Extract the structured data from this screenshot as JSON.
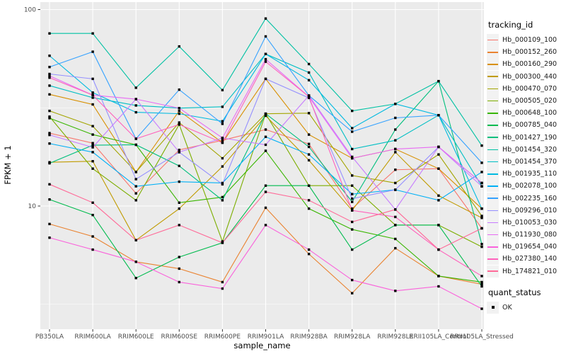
{
  "figure": {
    "background": "#ffffff",
    "panel_background": "#EBEBEB",
    "gridline_color": "#ffffff",
    "axis_text_color": "#4D4D4D",
    "x_axis": {
      "title": "sample_name"
    },
    "y_axis": {
      "title": "FPKM + 1",
      "tick_labels": [
        "100",
        "10"
      ],
      "tick_values": [
        100,
        10
      ],
      "minor_break_values": [
        31.62,
        3.162
      ]
    },
    "legend": {
      "tracking_title": "tracking_id",
      "quant_title": "quant_status",
      "quant_items": [
        {
          "label": "OK",
          "marker": "filled-black-square"
        }
      ]
    }
  },
  "chart_data": {
    "type": "line",
    "title": "",
    "xlabel": "sample_name",
    "ylabel": "FPKM + 1",
    "y_scale": "log10",
    "ylim": [
      2.45,
      110
    ],
    "grid": true,
    "legend_position": "right",
    "point_marker": "filled-black-square",
    "categories": [
      "PB350LA",
      "RRIM600LA",
      "RRIM600LE",
      "RRIM600SE",
      "RRIM600PE",
      "RRIM901LA",
      "RRIM928BA",
      "RRIM928LA",
      "RRIM928LE",
      "RRII105LA_Control",
      "RRII105LA_Stressed"
    ],
    "series": [
      {
        "name": "Hb_000109_100",
        "color": "#F8766D",
        "values": [
          23.5,
          20.9,
          11.6,
          19.3,
          21.6,
          24.5,
          20.7,
          9.7,
          15.3,
          15.5,
          7.7
        ]
      },
      {
        "name": "Hb_000152_260",
        "color": "#EA8331",
        "values": [
          8.1,
          7.0,
          5.2,
          4.8,
          4.1,
          9.8,
          5.7,
          3.6,
          6.1,
          4.4,
          4.0
        ]
      },
      {
        "name": "Hb_000160_290",
        "color": "#D89000",
        "values": [
          37.0,
          32.9,
          14.9,
          30.5,
          21.0,
          44.4,
          23.1,
          17.5,
          19.5,
          15.5,
          9.7
        ]
      },
      {
        "name": "Hb_000300_440",
        "color": "#C09B00",
        "values": [
          16.7,
          16.9,
          6.7,
          9.7,
          15.9,
          28.8,
          17.1,
          9.5,
          18.8,
          11.3,
          8.7
        ]
      },
      {
        "name": "Hb_000470_070",
        "color": "#A3A500",
        "values": [
          30.5,
          25.5,
          14.9,
          26.6,
          17.5,
          29.5,
          29.7,
          14.3,
          13.1,
          18.3,
          8.9
        ]
      },
      {
        "name": "Hb_000505_020",
        "color": "#7CAE00",
        "values": [
          28.5,
          15.5,
          10.7,
          26.0,
          6.6,
          29.5,
          12.7,
          12.7,
          8.0,
          8.0,
          6.2
        ]
      },
      {
        "name": "Hb_000648_100",
        "color": "#39B600",
        "values": [
          28.0,
          23.1,
          20.5,
          10.4,
          11.1,
          19.1,
          9.7,
          7.6,
          6.8,
          4.4,
          4.1
        ]
      },
      {
        "name": "Hb_000785_040",
        "color": "#00BB4E",
        "values": [
          10.8,
          9.0,
          4.3,
          5.5,
          6.5,
          12.7,
          12.7,
          6.0,
          8.0,
          8.0,
          3.9
        ]
      },
      {
        "name": "Hb_001427_190",
        "color": "#00BF7D",
        "values": [
          16.5,
          20.4,
          20.5,
          16.0,
          10.7,
          29.5,
          20.0,
          10.5,
          24.5,
          43.2,
          6.4
        ]
      },
      {
        "name": "Hb_001454_320",
        "color": "#00C1A3",
        "values": [
          75.6,
          75.6,
          40.0,
          64.9,
          38.9,
          90.0,
          52.8,
          30.5,
          33.1,
          43.2,
          20.3
        ]
      },
      {
        "name": "Hb_001454_370",
        "color": "#00BFC4",
        "values": [
          41.0,
          35.6,
          32.5,
          31.5,
          32.0,
          59.4,
          47.8,
          19.5,
          21.6,
          29.0,
          12.6
        ]
      },
      {
        "name": "Hb_001935_110",
        "color": "#00BAE0",
        "values": [
          58.2,
          37.8,
          30.0,
          29.5,
          27.0,
          59.4,
          43.7,
          24.9,
          33.1,
          29.0,
          9.7
        ]
      },
      {
        "name": "Hb_002078_100",
        "color": "#00B0F6",
        "values": [
          20.8,
          18.8,
          12.6,
          13.3,
          13.1,
          22.5,
          18.3,
          11.5,
          12.1,
          10.7,
          14.9
        ]
      },
      {
        "name": "Hb_002235_160",
        "color": "#35A2FF",
        "values": [
          51.0,
          61.0,
          22.0,
          39.1,
          26.2,
          73.0,
          36.5,
          23.9,
          28.1,
          29.0,
          16.6
        ]
      },
      {
        "name": "Hb_009296_010",
        "color": "#9590FF",
        "values": [
          47.0,
          44.4,
          13.7,
          18.8,
          12.9,
          44.4,
          35.5,
          10.9,
          12.1,
          20.0,
          13.1
        ]
      },
      {
        "name": "Hb_010053_030",
        "color": "#C77CFF",
        "values": [
          23.0,
          19.9,
          35.0,
          18.8,
          22.2,
          20.5,
          36.5,
          17.8,
          9.6,
          20.0,
          12.6
        ]
      },
      {
        "name": "Hb_011930_080",
        "color": "#E76BF3",
        "values": [
          46.0,
          36.7,
          35.0,
          31.5,
          22.2,
          55.9,
          36.0,
          17.5,
          19.5,
          20.0,
          13.1
        ]
      },
      {
        "name": "Hb_019654_040",
        "color": "#FA62DB",
        "values": [
          6.9,
          6.0,
          5.2,
          4.1,
          3.8,
          8.0,
          6.0,
          4.2,
          3.7,
          3.9,
          3.0
        ]
      },
      {
        "name": "Hb_027380_140",
        "color": "#FF62BC",
        "values": [
          45.0,
          36.7,
          22.0,
          26.0,
          21.0,
          54.3,
          36.0,
          9.5,
          8.8,
          6.0,
          4.4
        ]
      },
      {
        "name": "Hb_174821_010",
        "color": "#FF6A98",
        "values": [
          12.9,
          10.4,
          6.7,
          8.0,
          6.5,
          11.8,
          10.7,
          8.3,
          9.6,
          6.0,
          7.7
        ]
      }
    ]
  }
}
